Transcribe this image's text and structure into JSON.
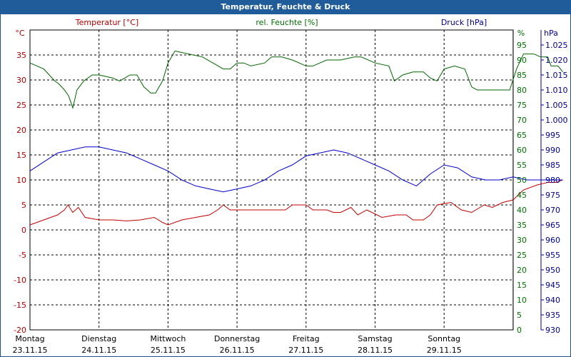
{
  "window_title": "Temperatur, Feuchte & Druck",
  "chart_data": {
    "type": "line",
    "legend": {
      "temperature": "Temperatur [°C]",
      "humidity": "rel. Feuchte [%]",
      "pressure": "Druck [hPa]"
    },
    "axes": {
      "temperature": {
        "unit": "°C",
        "range": [
          -20,
          40
        ],
        "ticks": [
          -20,
          -15,
          -10,
          -5,
          0,
          5,
          10,
          15,
          20,
          25,
          30,
          35
        ],
        "color": "#b00000"
      },
      "humidity": {
        "unit": "%",
        "range": [
          0,
          100
        ],
        "ticks": [
          0,
          5,
          10,
          15,
          20,
          25,
          30,
          35,
          40,
          45,
          50,
          55,
          60,
          65,
          70,
          75,
          80,
          85,
          90,
          95
        ],
        "color": "#007000"
      },
      "pressure": {
        "unit": "hPa",
        "range": [
          930,
          1030
        ],
        "ticks": [
          "930",
          "935",
          "940",
          "945",
          "950",
          "955",
          "960",
          "965",
          "970",
          "975",
          "980",
          "985",
          "990",
          "995",
          "1.000",
          "1.005",
          "1.010",
          "1.015",
          "1.020",
          "1.025"
        ],
        "color": "#000090"
      }
    },
    "x_labels": [
      {
        "day": "Montag",
        "date": "23.11.15"
      },
      {
        "day": "Dienstag",
        "date": "24.11.15"
      },
      {
        "day": "Mittwoch",
        "date": "25.11.15"
      },
      {
        "day": "Donnerstag",
        "date": "26.11.15"
      },
      {
        "day": "Freitag",
        "date": "27.11.15"
      },
      {
        "day": "Samstag",
        "date": "28.11.15"
      },
      {
        "day": "Sonntag",
        "date": "29.11.15"
      }
    ],
    "x_range_days": [
      0,
      7
    ],
    "grid": true,
    "series": [
      {
        "key": "temperature",
        "color": "#c00000",
        "points": [
          [
            0,
            1
          ],
          [
            0.2,
            2
          ],
          [
            0.4,
            3
          ],
          [
            0.5,
            4
          ],
          [
            0.55,
            5
          ],
          [
            0.62,
            3.5
          ],
          [
            0.7,
            4.5
          ],
          [
            0.8,
            2.5
          ],
          [
            1.0,
            2
          ],
          [
            1.2,
            2
          ],
          [
            1.4,
            1.8
          ],
          [
            1.6,
            2
          ],
          [
            1.8,
            2.5
          ],
          [
            1.92,
            1.5
          ],
          [
            2.0,
            1
          ],
          [
            2.2,
            2
          ],
          [
            2.4,
            2.5
          ],
          [
            2.6,
            3
          ],
          [
            2.72,
            4
          ],
          [
            2.8,
            5
          ],
          [
            2.9,
            4
          ],
          [
            3.1,
            4
          ],
          [
            3.3,
            4
          ],
          [
            3.5,
            4
          ],
          [
            3.7,
            4
          ],
          [
            3.8,
            5
          ],
          [
            4.0,
            5
          ],
          [
            4.1,
            4
          ],
          [
            4.3,
            4
          ],
          [
            4.4,
            3.5
          ],
          [
            4.5,
            3.5
          ],
          [
            4.65,
            4.5
          ],
          [
            4.75,
            3
          ],
          [
            4.88,
            4
          ],
          [
            5.1,
            2.5
          ],
          [
            5.3,
            3
          ],
          [
            5.45,
            3
          ],
          [
            5.55,
            2
          ],
          [
            5.7,
            2
          ],
          [
            5.8,
            3
          ],
          [
            5.9,
            5
          ],
          [
            6.1,
            5.5
          ],
          [
            6.25,
            4
          ],
          [
            6.4,
            3.5
          ],
          [
            6.58,
            5
          ],
          [
            6.7,
            4.5
          ],
          [
            6.85,
            5.5
          ],
          [
            7.0,
            6
          ],
          [
            7.15,
            8
          ],
          [
            7.35,
            9
          ],
          [
            7.5,
            9.5
          ],
          [
            7.62,
            9.5
          ],
          [
            7.72,
            10
          ]
        ]
      },
      {
        "key": "humidity",
        "color": "#006600",
        "points": [
          [
            0,
            89
          ],
          [
            0.2,
            87
          ],
          [
            0.28,
            85
          ],
          [
            0.36,
            83
          ],
          [
            0.42,
            82
          ],
          [
            0.5,
            80
          ],
          [
            0.56,
            78
          ],
          [
            0.62,
            74
          ],
          [
            0.68,
            80
          ],
          [
            0.78,
            83
          ],
          [
            0.9,
            85
          ],
          [
            1.0,
            85
          ],
          [
            1.2,
            84
          ],
          [
            1.3,
            83
          ],
          [
            1.45,
            85
          ],
          [
            1.55,
            85
          ],
          [
            1.65,
            81
          ],
          [
            1.75,
            79
          ],
          [
            1.82,
            79
          ],
          [
            1.92,
            83
          ],
          [
            2.0,
            89
          ],
          [
            2.1,
            93
          ],
          [
            2.3,
            92
          ],
          [
            2.5,
            91
          ],
          [
            2.65,
            89
          ],
          [
            2.8,
            87
          ],
          [
            2.9,
            87
          ],
          [
            3.0,
            89
          ],
          [
            3.1,
            89
          ],
          [
            3.2,
            88
          ],
          [
            3.4,
            89
          ],
          [
            3.5,
            91
          ],
          [
            3.65,
            91
          ],
          [
            3.8,
            90
          ],
          [
            4.0,
            88
          ],
          [
            4.1,
            88
          ],
          [
            4.3,
            90
          ],
          [
            4.5,
            90
          ],
          [
            4.7,
            91
          ],
          [
            4.8,
            91
          ],
          [
            5.0,
            89
          ],
          [
            5.2,
            88
          ],
          [
            5.28,
            83
          ],
          [
            5.4,
            85
          ],
          [
            5.55,
            86
          ],
          [
            5.7,
            86
          ],
          [
            5.8,
            84
          ],
          [
            5.9,
            83
          ],
          [
            6.0,
            87
          ],
          [
            6.15,
            88
          ],
          [
            6.3,
            87
          ],
          [
            6.4,
            81
          ],
          [
            6.48,
            80
          ],
          [
            6.6,
            80
          ],
          [
            6.8,
            80
          ],
          [
            6.95,
            80
          ],
          [
            7.05,
            87
          ],
          [
            7.15,
            92
          ],
          [
            7.3,
            92
          ],
          [
            7.4,
            91
          ],
          [
            7.5,
            91
          ],
          [
            7.55,
            88
          ],
          [
            7.65,
            88
          ],
          [
            7.72,
            86
          ]
        ]
      },
      {
        "key": "pressure",
        "color": "#0000cc",
        "points": [
          [
            0,
            983
          ],
          [
            0.2,
            986
          ],
          [
            0.4,
            989
          ],
          [
            0.6,
            990
          ],
          [
            0.8,
            991
          ],
          [
            1.0,
            991
          ],
          [
            1.2,
            990
          ],
          [
            1.4,
            989
          ],
          [
            1.6,
            987
          ],
          [
            1.8,
            985
          ],
          [
            2.0,
            983
          ],
          [
            2.2,
            980
          ],
          [
            2.4,
            978
          ],
          [
            2.6,
            977
          ],
          [
            2.8,
            976
          ],
          [
            3.0,
            977
          ],
          [
            3.2,
            978
          ],
          [
            3.4,
            980
          ],
          [
            3.6,
            983
          ],
          [
            3.8,
            985
          ],
          [
            4.0,
            988
          ],
          [
            4.2,
            989
          ],
          [
            4.4,
            990
          ],
          [
            4.6,
            989
          ],
          [
            4.8,
            987
          ],
          [
            5.0,
            985
          ],
          [
            5.2,
            983
          ],
          [
            5.4,
            980
          ],
          [
            5.6,
            978
          ],
          [
            5.8,
            982
          ],
          [
            6.0,
            985
          ],
          [
            6.2,
            984
          ],
          [
            6.4,
            981
          ],
          [
            6.6,
            980
          ],
          [
            6.8,
            980
          ],
          [
            7.0,
            981
          ],
          [
            7.2,
            980
          ],
          [
            7.4,
            980
          ],
          [
            7.6,
            980
          ],
          [
            7.72,
            980
          ]
        ]
      }
    ]
  }
}
